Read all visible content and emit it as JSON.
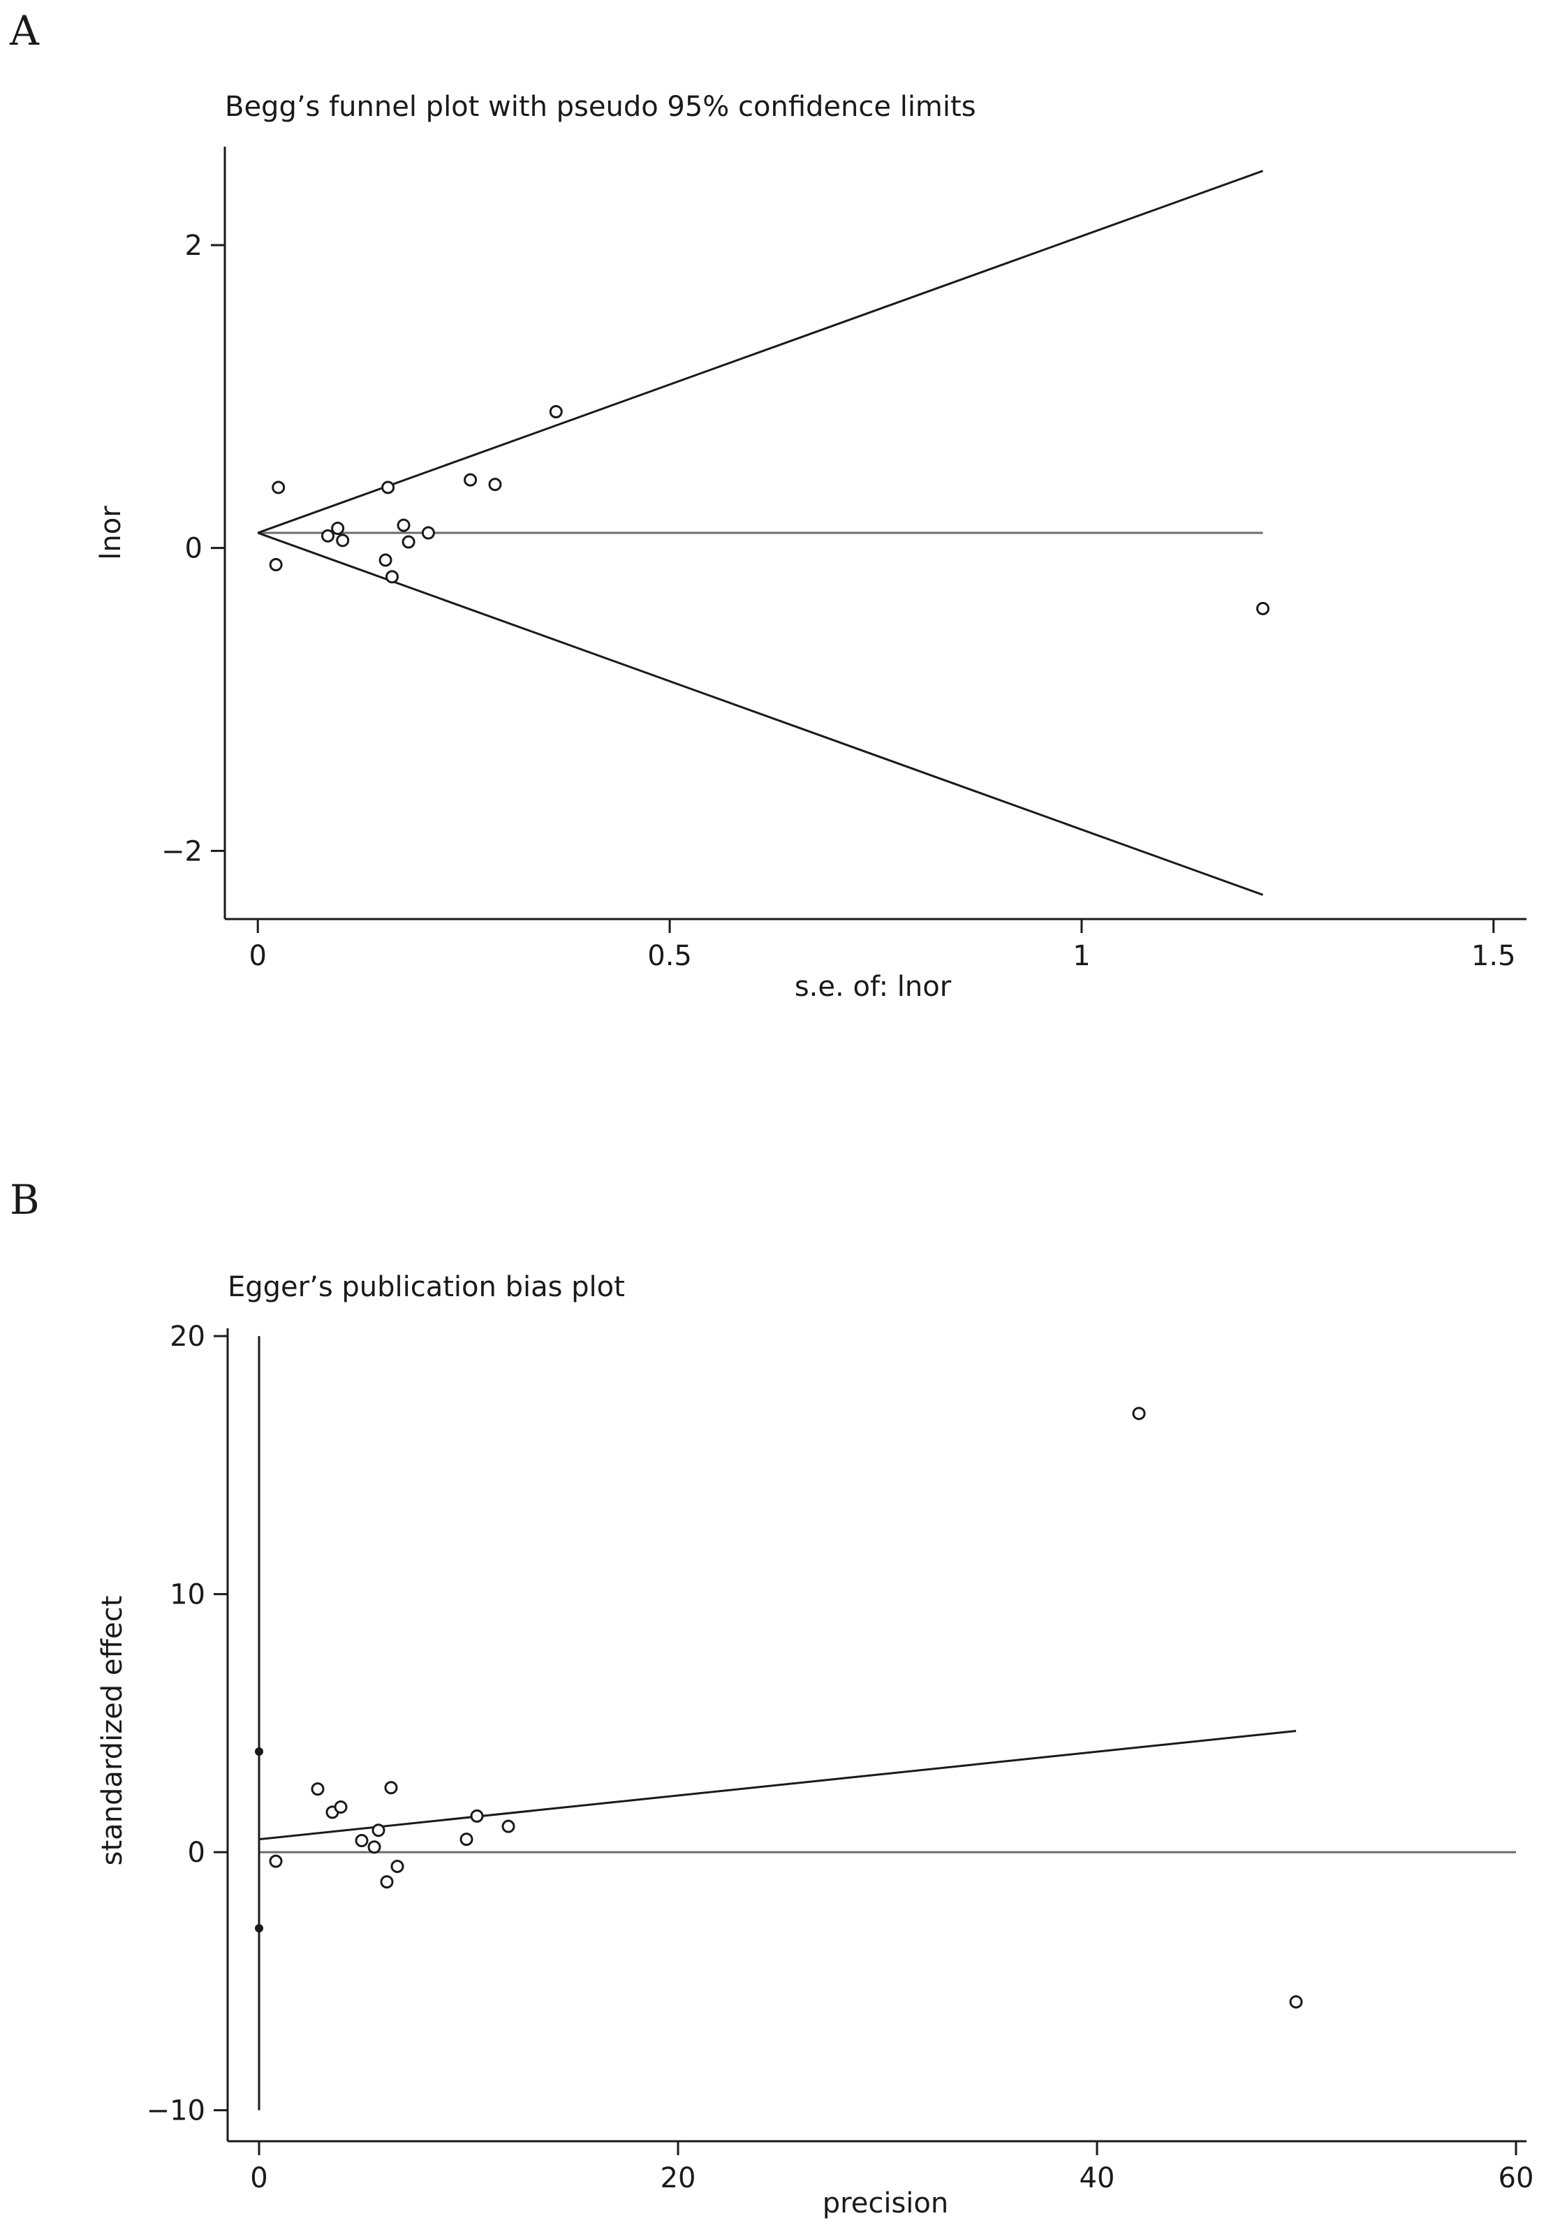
{
  "chart_data": [
    {
      "type": "scatter",
      "panel_label": "A",
      "title": "Begg’s funnel plot with pseudo 95% confidence limits",
      "xlabel": "s.e. of: lnor",
      "ylabel": "lnor",
      "xlim": [
        -0.04,
        1.54
      ],
      "ylim": [
        -2.45,
        2.65
      ],
      "xticks": [
        0,
        0.5,
        1,
        1.5
      ],
      "xtick_labels": [
        "0",
        "0.5",
        "1",
        "1.5"
      ],
      "yticks": [
        -2,
        0,
        2
      ],
      "ytick_labels": [
        "−2",
        "0",
        "2"
      ],
      "grid": false,
      "legend": "none",
      "pooled_estimate": 0.1,
      "pseudo_ci_upper": [
        [
          0,
          0.1
        ],
        [
          1.22,
          2.49
        ]
      ],
      "pseudo_ci_lower": [
        [
          0,
          0.1
        ],
        [
          1.22,
          -2.29
        ]
      ],
      "reference_line_x_range": [
        0,
        1.22
      ],
      "points": [
        {
          "x": 0.025,
          "y": 0.4
        },
        {
          "x": 0.022,
          "y": -0.11
        },
        {
          "x": 0.085,
          "y": 0.08
        },
        {
          "x": 0.097,
          "y": 0.13
        },
        {
          "x": 0.103,
          "y": 0.05
        },
        {
          "x": 0.155,
          "y": -0.08
        },
        {
          "x": 0.158,
          "y": 0.4
        },
        {
          "x": 0.163,
          "y": -0.19
        },
        {
          "x": 0.177,
          "y": 0.15
        },
        {
          "x": 0.183,
          "y": 0.04
        },
        {
          "x": 0.207,
          "y": 0.1
        },
        {
          "x": 0.258,
          "y": 0.45
        },
        {
          "x": 0.288,
          "y": 0.42
        },
        {
          "x": 0.362,
          "y": 0.9
        },
        {
          "x": 1.22,
          "y": -0.4
        }
      ]
    },
    {
      "type": "scatter",
      "panel_label": "B",
      "title": "Egger’s publication bias plot",
      "xlabel": "precision",
      "ylabel": "standardized effect",
      "xlim": [
        -1.5,
        60.5
      ],
      "ylim": [
        -11.2,
        20.3
      ],
      "xticks": [
        0,
        20,
        40,
        60
      ],
      "xtick_labels": [
        "0",
        "20",
        "40",
        "60"
      ],
      "yticks": [
        -10,
        0,
        10,
        20
      ],
      "ytick_labels": [
        "−10",
        "0",
        "10",
        "20"
      ],
      "grid": false,
      "legend": "none",
      "intercept_ci": [
        -10,
        20
      ],
      "intercept_ci_markers": [
        3.9,
        -2.95
      ],
      "regression_line": [
        [
          0,
          0.5
        ],
        [
          49.5,
          4.7
        ]
      ],
      "zero_line_x_range": [
        0,
        60
      ],
      "points": [
        {
          "x": 0.8,
          "y": -0.35
        },
        {
          "x": 2.8,
          "y": 2.45
        },
        {
          "x": 3.5,
          "y": 1.55
        },
        {
          "x": 3.9,
          "y": 1.75
        },
        {
          "x": 4.9,
          "y": 0.45
        },
        {
          "x": 5.5,
          "y": 0.2
        },
        {
          "x": 5.7,
          "y": 0.85
        },
        {
          "x": 6.1,
          "y": -1.15
        },
        {
          "x": 6.3,
          "y": 2.5
        },
        {
          "x": 6.6,
          "y": -0.55
        },
        {
          "x": 9.9,
          "y": 0.5
        },
        {
          "x": 10.4,
          "y": 1.4
        },
        {
          "x": 11.9,
          "y": 1.0
        },
        {
          "x": 42.0,
          "y": 17.0
        },
        {
          "x": 49.5,
          "y": -5.8
        }
      ]
    }
  ]
}
